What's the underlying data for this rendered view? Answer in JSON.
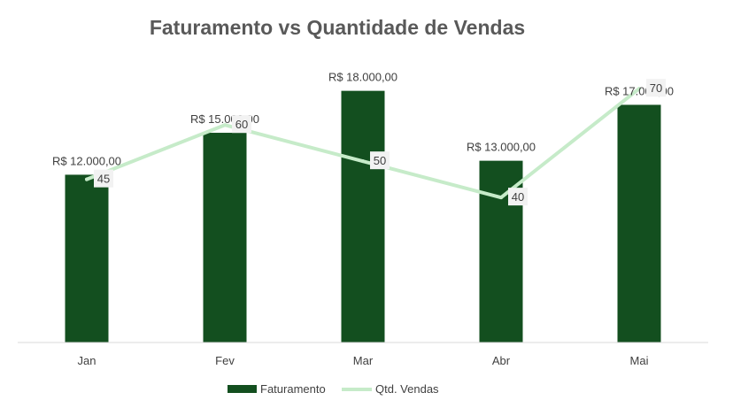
{
  "chart_data": {
    "type": "bar",
    "title": "Faturamento vs Quantidade de Vendas",
    "categories": [
      "Jan",
      "Fev",
      "Mar",
      "Abr",
      "Mai"
    ],
    "series": [
      {
        "name": "Faturamento",
        "type": "bar",
        "values": [
          12000,
          15000,
          18000,
          13000,
          17000
        ],
        "labels": [
          "R$ 12.000,00",
          "R$ 15.000,00",
          "R$ 18.000,00",
          "R$ 13.000,00",
          "R$ 17.000,00"
        ],
        "color": "#134f1f",
        "ylim": [
          0,
          18800
        ]
      },
      {
        "name": "Qtd. Vendas",
        "type": "line",
        "values": [
          45,
          60,
          50,
          40,
          70
        ],
        "labels": [
          "45",
          "60",
          "50",
          "40",
          "70"
        ],
        "color": "#c6ebc9",
        "ylim": [
          0,
          72.5
        ]
      }
    ],
    "legend_position": "bottom",
    "grid": false
  }
}
